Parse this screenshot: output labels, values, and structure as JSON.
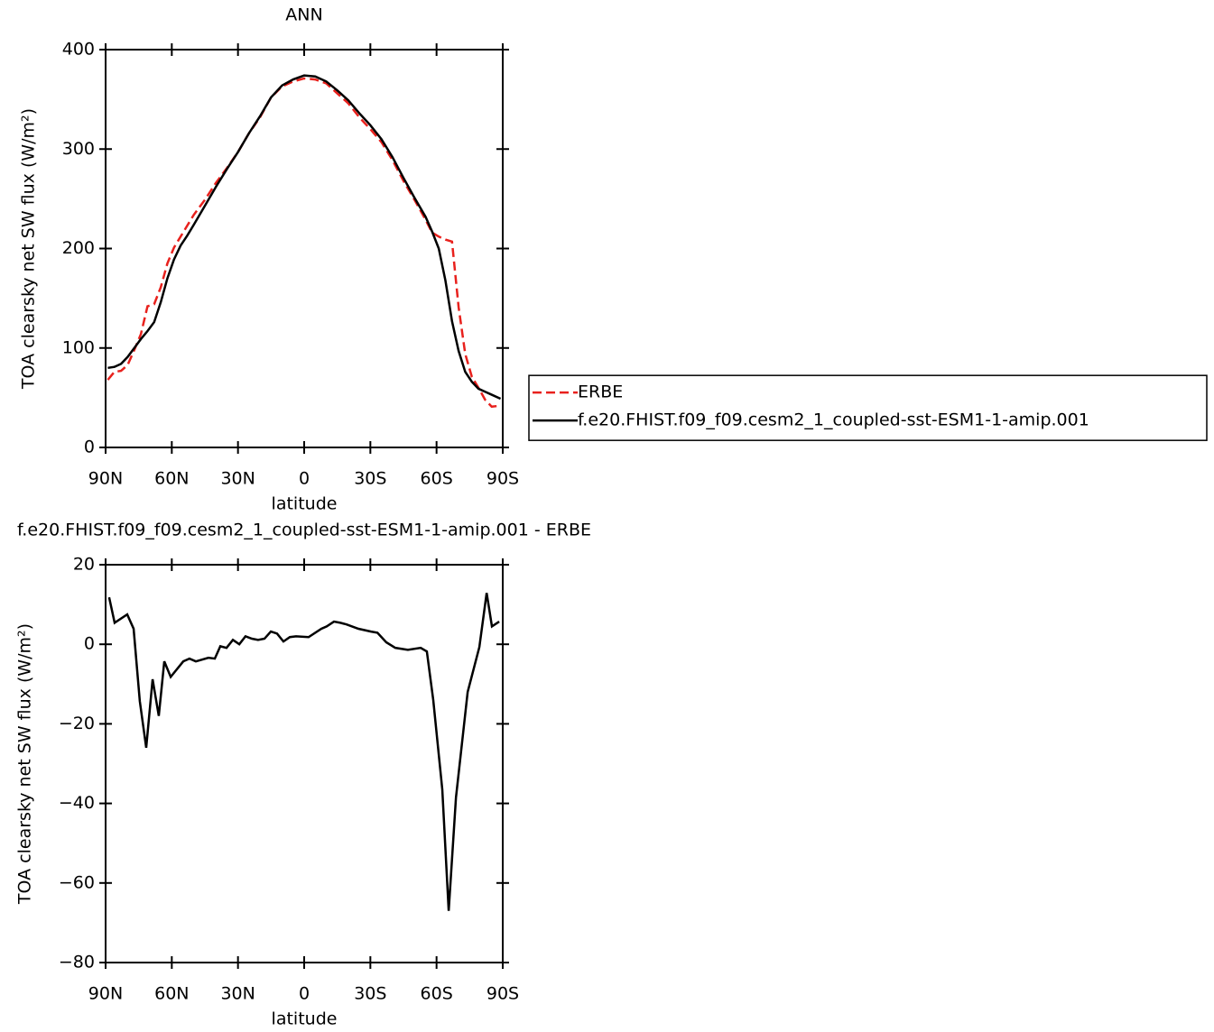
{
  "chart_data": [
    {
      "type": "line",
      "title": "ANN",
      "xlabel": "latitude",
      "ylabel": "TOA clearsky net SW flux (W/m²)",
      "xlim": [
        90,
        -90
      ],
      "ylim": [
        0,
        400
      ],
      "xticks": [
        {
          "value": 90,
          "label": "90N"
        },
        {
          "value": 60,
          "label": "60N"
        },
        {
          "value": 30,
          "label": "30N"
        },
        0,
        {
          "value": -30,
          "label": "30S"
        },
        {
          "value": -60,
          "label": "60S"
        },
        {
          "value": -90,
          "label": "90S"
        }
      ],
      "yticks": [
        0,
        100,
        200,
        300,
        400
      ],
      "legend": "right",
      "x": [
        89,
        86,
        83,
        80,
        77,
        74,
        71,
        68,
        65,
        62,
        59,
        56,
        53,
        50,
        45,
        40,
        35,
        30,
        25,
        20,
        15,
        10,
        5,
        0,
        -5,
        -10,
        -15,
        -20,
        -25,
        -30,
        -35,
        -40,
        -45,
        -50,
        -55,
        -58,
        -61,
        -64,
        -67,
        -70,
        -73,
        -76,
        -79,
        -82,
        -85,
        -89
      ],
      "series": [
        {
          "name": "ERBE",
          "color": "#e8211d",
          "style": "dashed",
          "values": [
            68,
            76,
            77,
            83,
            98,
            114,
            142,
            144,
            161,
            185,
            201,
            212,
            223,
            234,
            249,
            266,
            281,
            297,
            316,
            332,
            352,
            363,
            368,
            371,
            370,
            366,
            356,
            346,
            332,
            320,
            307,
            289,
            268,
            249,
            229,
            216,
            212,
            209,
            207,
            141,
            94,
            71,
            60,
            48,
            41,
            42
          ]
        },
        {
          "name": "f.e20.FHIST.f09_f09.cesm2_1_coupled-sst-ESM1-1-amip.001",
          "color": "#000000",
          "style": "solid",
          "values": [
            80,
            81,
            84,
            91,
            100,
            109,
            117,
            126,
            146,
            170,
            189,
            203,
            213,
            224,
            243,
            262,
            280,
            297,
            316,
            333,
            352,
            364,
            370,
            374,
            373,
            368,
            359,
            349,
            336,
            324,
            310,
            292,
            271,
            251,
            232,
            217,
            200,
            168,
            127,
            97,
            76,
            66,
            59,
            56,
            53,
            49
          ]
        }
      ]
    },
    {
      "type": "line",
      "title": "f.e20.FHIST.f09_f09.cesm2_1_coupled-sst-ESM1-1-amip.001 - ERBE",
      "xlabel": "latitude",
      "ylabel": "TOA clearsky net SW flux (W/m²)",
      "xlim": [
        90,
        -90
      ],
      "ylim": [
        -80,
        20
      ],
      "xticks": [
        {
          "value": 90,
          "label": "90N"
        },
        {
          "value": 60,
          "label": "60N"
        },
        {
          "value": 30,
          "label": "30N"
        },
        0,
        {
          "value": -30,
          "label": "30S"
        },
        {
          "value": -60,
          "label": "60S"
        },
        {
          "value": -90,
          "label": "90S"
        }
      ],
      "yticks": [
        {
          "value": -80,
          "label": "−80"
        },
        {
          "value": -60,
          "label": "−60"
        },
        {
          "value": -40,
          "label": "−40"
        },
        {
          "value": -20,
          "label": "−20"
        },
        0,
        20
      ],
      "x": [
        88.4,
        85.9,
        80.2,
        77.3,
        74.5,
        71.6,
        68.7,
        65.9,
        63.4,
        60.5,
        54.8,
        52,
        49.1,
        43.4,
        40.5,
        38,
        35.2,
        32.3,
        29.4,
        26.6,
        23.7,
        20.9,
        18,
        15.1,
        12.3,
        9.4,
        6.5,
        3.7,
        -2,
        -7.8,
        -10.2,
        -13.5,
        -16.4,
        -19.2,
        -24.6,
        -30.3,
        -33.2,
        -37.2,
        -41.3,
        -47,
        -52.8,
        -55.6,
        -58.5,
        -62.6,
        -65.5,
        -68.8,
        -74.1,
        -79.4,
        -82.7,
        -85.1,
        -88.4
      ],
      "series": [
        {
          "color": "#000000",
          "style": "solid",
          "values": [
            11.8,
            5.4,
            7.5,
            3.9,
            -14.3,
            -26,
            -8.8,
            -18,
            -4.3,
            -8.2,
            -4.3,
            -3.6,
            -4.3,
            -3.4,
            -3.6,
            -0.5,
            -0.9,
            1.1,
            0,
            2,
            1.4,
            1.1,
            1.4,
            3.2,
            2.7,
            0.7,
            1.8,
            2,
            1.8,
            3.9,
            4.5,
            5.7,
            5.4,
            5,
            3.9,
            3.2,
            2.9,
            0.5,
            -0.9,
            -1.4,
            -0.9,
            -1.8,
            -14,
            -36.5,
            -67,
            -38.5,
            -12,
            -0.7,
            12.9,
            4.5,
            5.7
          ]
        }
      ]
    }
  ]
}
